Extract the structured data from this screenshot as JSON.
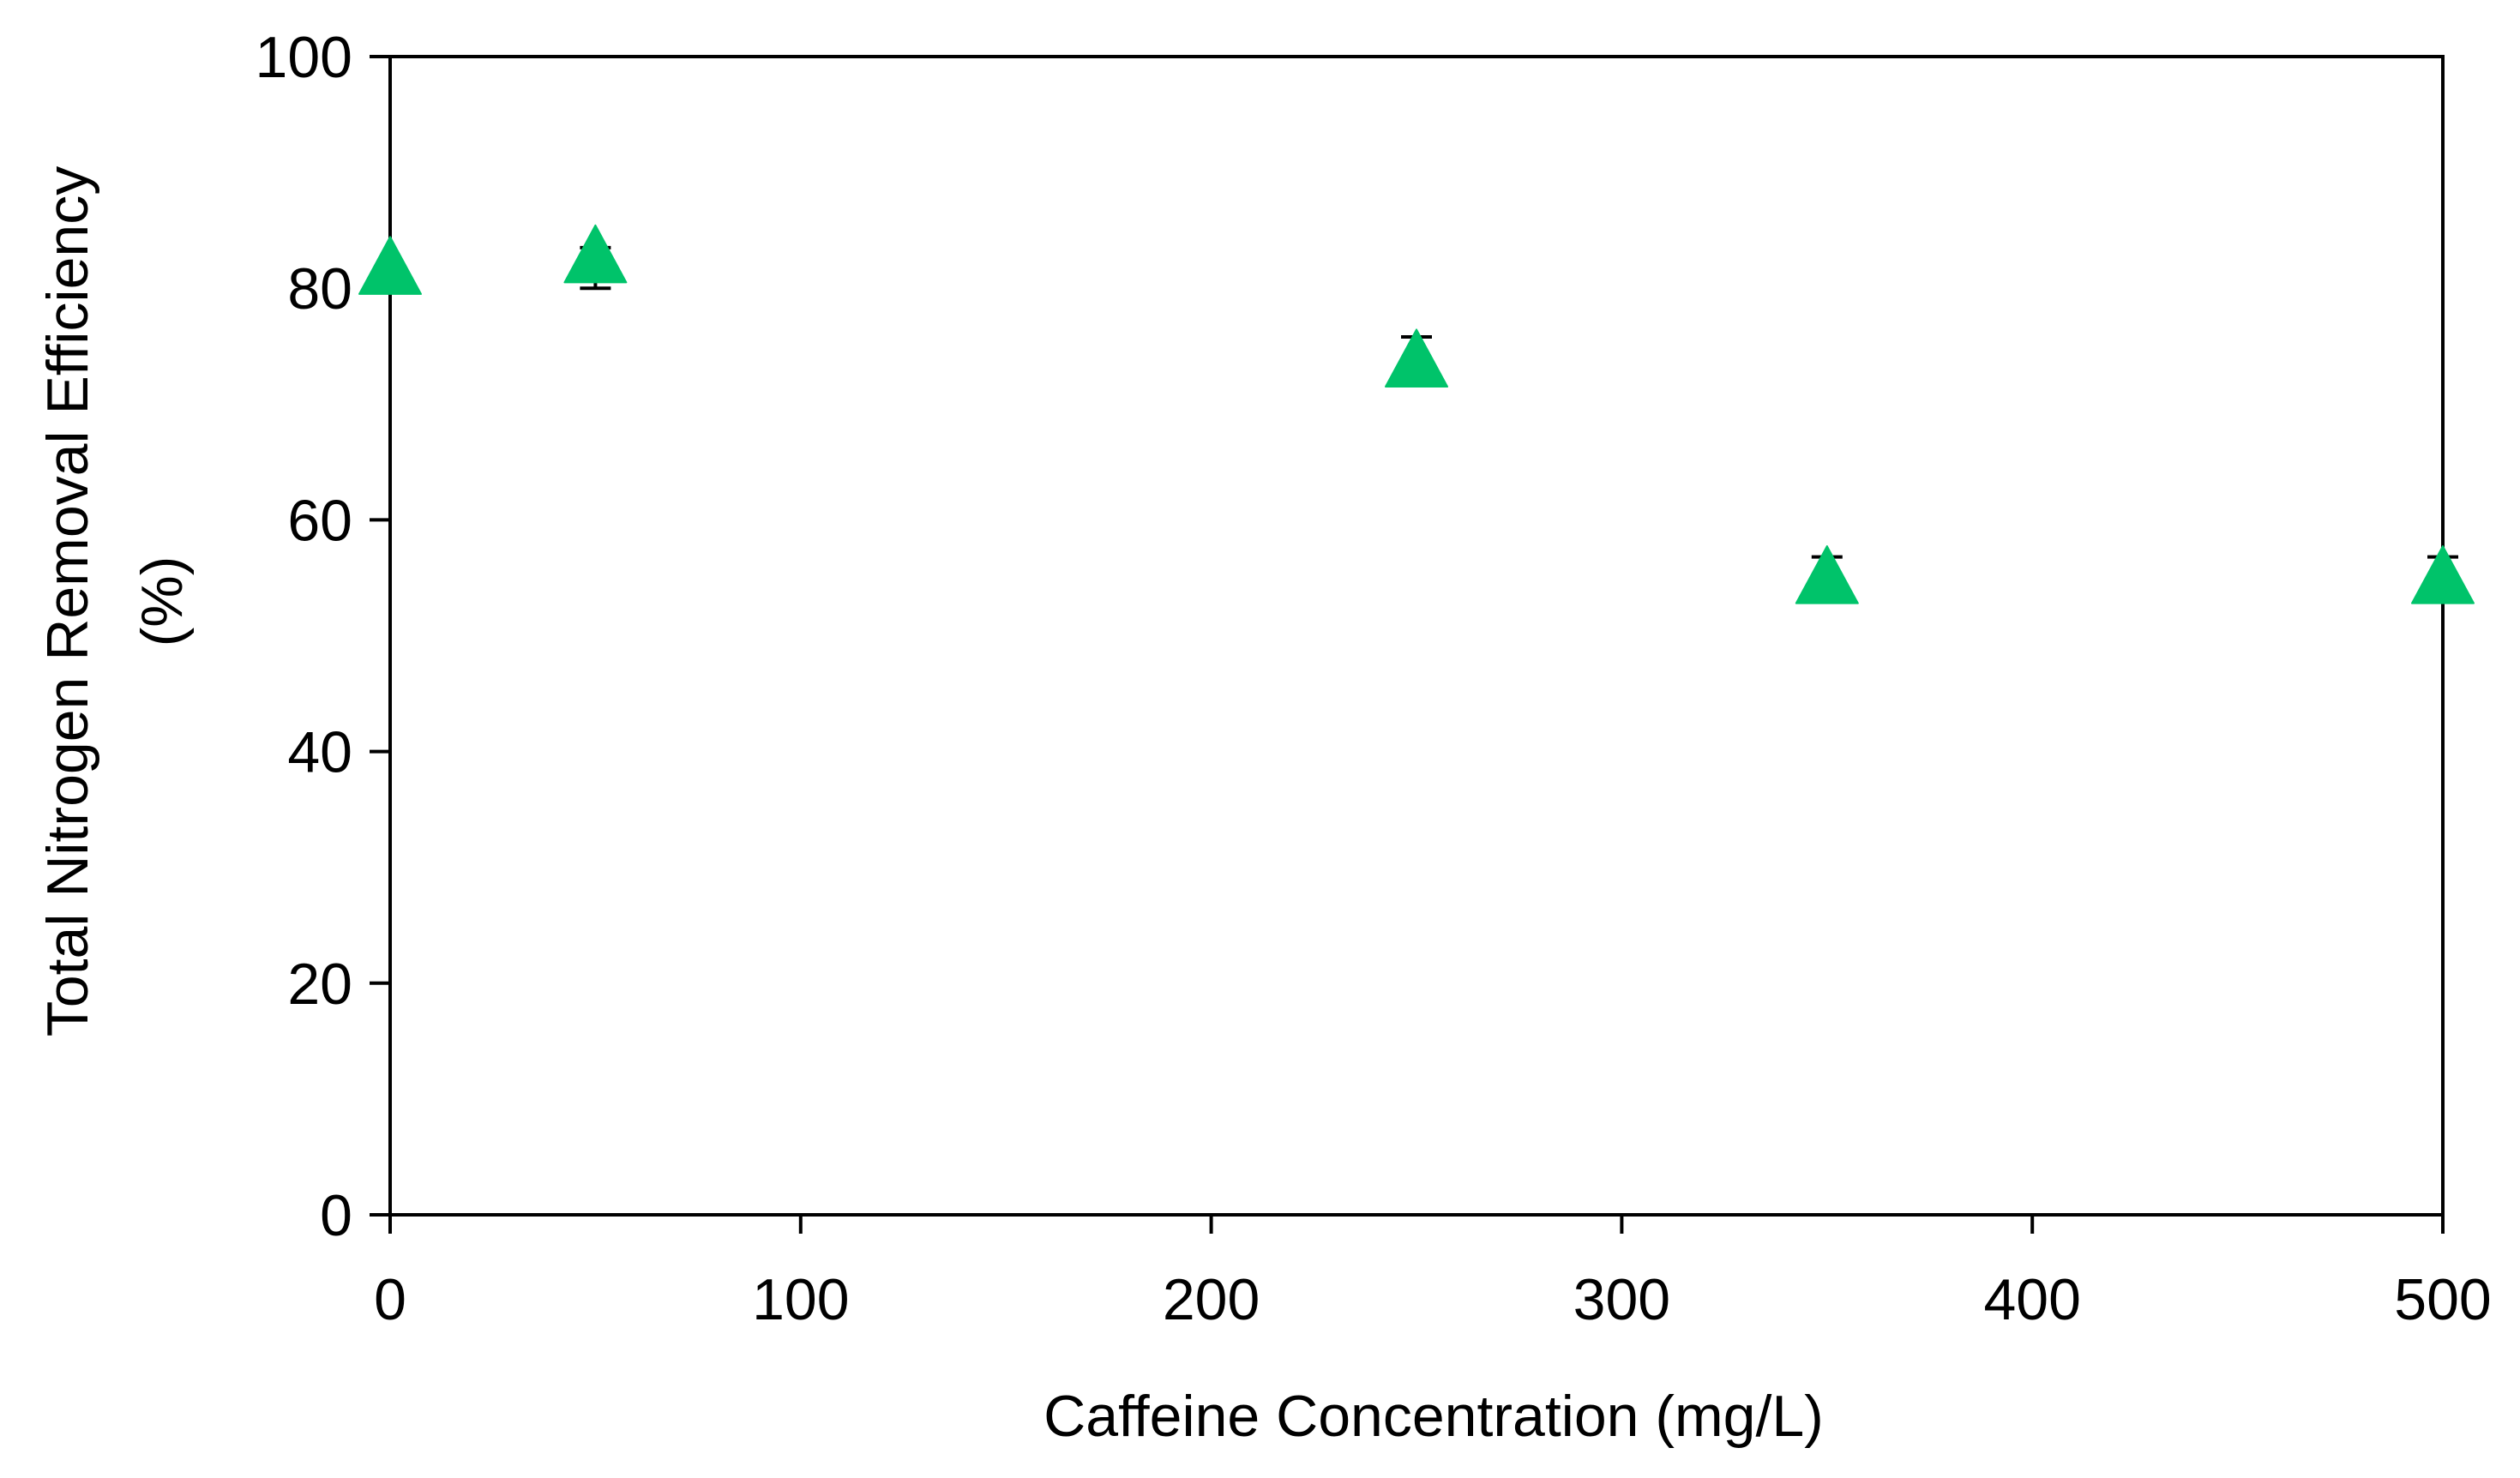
{
  "chart_data": {
    "type": "scatter",
    "title": "",
    "xlabel": "Caffeine Concentration (mg/L)",
    "ylabel_lines": [
      "Total Nitrogen Removal Efficiency",
      "(%)"
    ],
    "xlim": [
      0,
      500
    ],
    "ylim": [
      0,
      100
    ],
    "xticks": [
      0,
      100,
      200,
      300,
      400,
      500
    ],
    "yticks": [
      0,
      20,
      40,
      60,
      80,
      100
    ],
    "grid": false,
    "legend": "none",
    "series": [
      {
        "name": "Total Nitrogen Removal Efficiency",
        "marker": "triangle",
        "color": "#00c36a",
        "points": [
          {
            "x": 0,
            "y": 81.5,
            "err_low": 0,
            "err_high": 0
          },
          {
            "x": 50,
            "y": 82.5,
            "err_low": 2.5,
            "err_high": 1.0
          },
          {
            "x": 250,
            "y": 73.5,
            "err_low": 0,
            "err_high": 2.3
          },
          {
            "x": 350,
            "y": 54.8,
            "err_low": 0,
            "err_high": 2.0
          },
          {
            "x": 500,
            "y": 54.8,
            "err_low": 0,
            "err_high": 2.0
          }
        ]
      }
    ]
  }
}
